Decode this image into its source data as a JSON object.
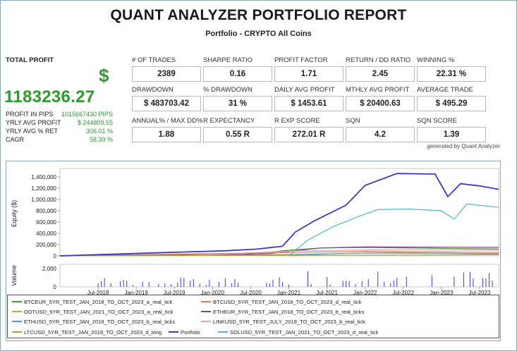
{
  "report": {
    "title": "QUANT ANALYZER PORTFOLIO REPORT",
    "subtitle": "Portfolio - CRYPTO All Coins",
    "generated_by": "generated by Quant Analyzer"
  },
  "summary": {
    "total_profit_label": "TOTAL PROFIT",
    "currency_symbol": "$",
    "total_profit_value": "1183236.27",
    "rows": [
      {
        "label": "PROFIT IN PIPS",
        "value": "1015667430 PIPS"
      },
      {
        "label": "YRLY AVG PROFIT",
        "value": "$ 244809.55"
      },
      {
        "label": "YRLY AVG % RET",
        "value": "306.01 %"
      },
      {
        "label": "CAGR",
        "value": "58.39 %"
      }
    ]
  },
  "stats": [
    {
      "label": "# OF TRADES",
      "value": "2389"
    },
    {
      "label": "SHARPE RATIO",
      "value": "0.16"
    },
    {
      "label": "PROFIT FACTOR",
      "value": "1.71"
    },
    {
      "label": "RETURN / DD RATIO",
      "value": "2.45"
    },
    {
      "label": "WINNING %",
      "value": "22.31 %"
    },
    {
      "label": "DRAWDOWN",
      "value": "$ 483703.42"
    },
    {
      "label": "% DRAWDOWN",
      "value": "31 %"
    },
    {
      "label": "DAILY AVG PROFIT",
      "value": "$ 1453.61"
    },
    {
      "label": "MTHLY AVG PROFIT",
      "value": "$ 20400.63"
    },
    {
      "label": "AVERAGE TRADE",
      "value": "$ 495.29"
    },
    {
      "label": "ANNUAL% / MAX DD%",
      "value": "1.88"
    },
    {
      "label": "R EXPECTANCY",
      "value": "0.55 R"
    },
    {
      "label": "R EXP SCORE",
      "value": "272.01 R"
    },
    {
      "label": "SQN",
      "value": "4.2"
    },
    {
      "label": "SQN SCORE",
      "value": "1.39"
    }
  ],
  "chart_data": {
    "type": "line",
    "ylabel": "Equity ($)",
    "ylabel_volume": "Volume",
    "yticks": [
      "1,400,000",
      "1,200,000",
      "1,000,000",
      "800,000",
      "600,000",
      "400,000",
      "200,000",
      "0"
    ],
    "ylim": [
      0,
      1500000
    ],
    "volume_ticks": [
      "2,000",
      "0"
    ],
    "xticks": [
      "Jul-2018",
      "Jan-2019",
      "Jul-2019",
      "Jan-2020",
      "Jul-2020",
      "Jan-2021",
      "Jul-2021",
      "Jan-2022",
      "Jul-2022",
      "Jan-2023",
      "Jul-2023"
    ],
    "x_range": [
      "2018-01",
      "2023-10"
    ],
    "series": [
      {
        "name": "Portfolio",
        "color": "#3a3ac8",
        "points": [
          [
            "2018-01",
            0
          ],
          [
            "2019-06",
            60000
          ],
          [
            "2020-03",
            90000
          ],
          [
            "2020-08",
            120000
          ],
          [
            "2020-12",
            170000
          ],
          [
            "2021-02",
            420000
          ],
          [
            "2021-05",
            620000
          ],
          [
            "2021-10",
            900000
          ],
          [
            "2022-01",
            1250000
          ],
          [
            "2022-06",
            1460000
          ],
          [
            "2022-12",
            1450000
          ],
          [
            "2023-02",
            1050000
          ],
          [
            "2023-04",
            1280000
          ],
          [
            "2023-07",
            1240000
          ],
          [
            "2023-10",
            1180000
          ]
        ]
      },
      {
        "name": "SOLUSD_5YR_TEST_JAN_2021_TO_OCT_2023_d_real_tick",
        "color": "#4fb6c4",
        "points": [
          [
            "2021-01",
            0
          ],
          [
            "2021-04",
            280000
          ],
          [
            "2021-08",
            520000
          ],
          [
            "2021-12",
            700000
          ],
          [
            "2022-03",
            820000
          ],
          [
            "2022-08",
            830000
          ],
          [
            "2023-01",
            800000
          ],
          [
            "2023-03",
            650000
          ],
          [
            "2023-05",
            920000
          ],
          [
            "2023-10",
            860000
          ]
        ]
      },
      {
        "name": "BTCEUR_5YR_TEST_JAN_2018_TO_OCT_2023_a_real_tick",
        "color": "#3a9a3a",
        "points": [
          [
            "2018-01",
            0
          ],
          [
            "2020-06",
            20000
          ],
          [
            "2021-01",
            100000
          ],
          [
            "2021-06",
            140000
          ],
          [
            "2022-01",
            150000
          ],
          [
            "2023-10",
            120000
          ]
        ]
      },
      {
        "name": "ETHEUR_5YR_TEST_JAN_2018_TO_OCT_2023_b_real_ticks",
        "color": "#8a3a8a",
        "points": [
          [
            "2018-01",
            0
          ],
          [
            "2020-10",
            40000
          ],
          [
            "2021-06",
            140000
          ],
          [
            "2022-01",
            160000
          ],
          [
            "2023-10",
            150000
          ]
        ]
      },
      {
        "name": "BTCUSD_5YR_TEST_JAN_2018_TO_OCT_2023_d_real_tick",
        "color": "#e07a5a",
        "points": [
          [
            "2018-01",
            0
          ],
          [
            "2021-01",
            60000
          ],
          [
            "2022-01",
            80000
          ],
          [
            "2023-10",
            60000
          ]
        ]
      },
      {
        "name": "DOTUSD_5YR_TEST_JAN_2021_TO_OCT_2023_a_real_tick",
        "color": "#d9a040",
        "points": [
          [
            "2021-01",
            0
          ],
          [
            "2021-08",
            40000
          ],
          [
            "2022-06",
            60000
          ],
          [
            "2023-10",
            30000
          ]
        ]
      },
      {
        "name": "ETHUSD_5YR_TEST_JAN_2018_TO_OCT_2023_b_real_ticks",
        "color": "#4aa0c8",
        "points": [
          [
            "2018-01",
            0
          ],
          [
            "2020-12",
            20000
          ],
          [
            "2022-01",
            50000
          ],
          [
            "2023-10",
            40000
          ]
        ]
      },
      {
        "name": "LINKUSD_5YR_TEST_JULY_2019_TO_OCT_2023_b_real_tick",
        "color": "#e6a0b4",
        "points": [
          [
            "2019-07",
            0
          ],
          [
            "2021-03",
            90000
          ],
          [
            "2022-06",
            110000
          ],
          [
            "2023-10",
            100000
          ]
        ]
      },
      {
        "name": "LTCUSD_5YR_TEST_JAN_2018_TO_OCT_2023_d_long",
        "color": "#b7a330",
        "points": [
          [
            "2018-01",
            0
          ],
          [
            "2021-01",
            10000
          ],
          [
            "2023-10",
            20000
          ]
        ]
      }
    ]
  },
  "legend": [
    {
      "name": "BTCEUR_5YR_TEST_JAN_2018_TO_OCT_2023_a_real_tick",
      "color": "#3a9a3a"
    },
    {
      "name": "BTCUSD_5YR_TEST_JAN_2018_TO_OCT_2023_d_real_tick",
      "color": "#e07a5a"
    },
    {
      "name": "DOTUSD_5YR_TEST_JAN_2021_TO_OCT_2023_a_real_tick",
      "color": "#d9a040"
    },
    {
      "name": "ETHEUR_5YR_TEST_JAN_2018_TO_OCT_2023_b_real_ticks",
      "color": "#8a3a8a"
    },
    {
      "name": "ETHUSD_5YR_TEST_JAN_2018_TO_OCT_2023_b_real_ticks",
      "color": "#4aa0c8"
    },
    {
      "name": "LINKUSD_5YR_TEST_JULY_2019_TO_OCT_2023_b_real_tick",
      "color": "#e6a0b4"
    },
    {
      "name": "LTCUSD_5YR_TEST_JAN_2018_TO_OCT_2023_d_long",
      "color": "#b7a330"
    },
    {
      "name": "Portfolio",
      "color": "#3a3ac8"
    },
    {
      "name": "SOLUSD_5YR_TEST_JAN_2021_TO_OCT_2023_d_real_tick",
      "color": "#4fb6c4"
    }
  ]
}
